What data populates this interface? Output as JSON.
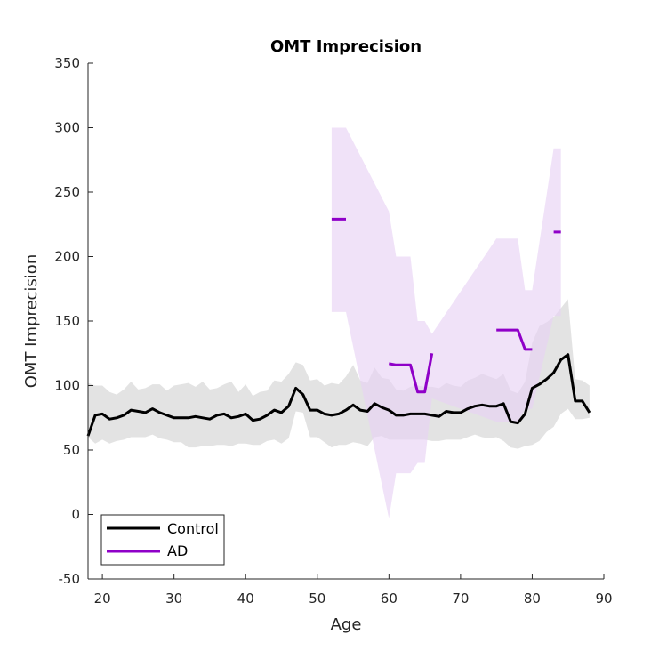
{
  "chart_data": {
    "type": "line",
    "title": "OMT Imprecision",
    "xlabel": "Age",
    "ylabel": "OMT Imprecision",
    "xlim": [
      18,
      90
    ],
    "ylim": [
      -50,
      350
    ],
    "xticks": [
      20,
      30,
      40,
      50,
      60,
      70,
      80,
      90
    ],
    "yticks": [
      -50,
      0,
      50,
      100,
      150,
      200,
      250,
      300,
      350
    ],
    "grid": false,
    "legend_position": "bottom-left",
    "colors": {
      "control": "#000000",
      "ad": "#8f00c8",
      "control_band": "#d9d9d9",
      "ad_band": "#e8d2f5"
    },
    "series": [
      {
        "name": "Control",
        "segments": [
          [
            [
              18,
              61
            ],
            [
              19,
              77
            ],
            [
              20,
              78
            ],
            [
              21,
              74
            ],
            [
              22,
              75
            ],
            [
              23,
              77
            ],
            [
              24,
              81
            ],
            [
              25,
              80
            ],
            [
              26,
              79
            ],
            [
              27,
              82
            ],
            [
              28,
              79
            ],
            [
              29,
              77
            ],
            [
              30,
              75
            ],
            [
              31,
              75
            ],
            [
              32,
              75
            ],
            [
              33,
              76
            ],
            [
              34,
              75
            ],
            [
              35,
              74
            ],
            [
              36,
              77
            ],
            [
              37,
              78
            ],
            [
              38,
              75
            ],
            [
              39,
              76
            ],
            [
              40,
              78
            ],
            [
              41,
              73
            ],
            [
              42,
              74
            ],
            [
              43,
              77
            ],
            [
              44,
              81
            ],
            [
              45,
              79
            ],
            [
              46,
              84
            ],
            [
              47,
              98
            ],
            [
              48,
              93
            ],
            [
              49,
              81
            ],
            [
              50,
              81
            ],
            [
              51,
              78
            ],
            [
              52,
              77
            ],
            [
              53,
              78
            ],
            [
              54,
              81
            ],
            [
              55,
              85
            ],
            [
              56,
              81
            ],
            [
              57,
              80
            ],
            [
              58,
              86
            ],
            [
              59,
              83
            ],
            [
              60,
              81
            ],
            [
              61,
              77
            ],
            [
              62,
              77
            ],
            [
              63,
              78
            ],
            [
              64,
              78
            ],
            [
              65,
              78
            ],
            [
              66,
              77
            ],
            [
              67,
              76
            ],
            [
              68,
              80
            ],
            [
              69,
              79
            ],
            [
              70,
              79
            ],
            [
              71,
              82
            ],
            [
              72,
              84
            ],
            [
              73,
              85
            ],
            [
              74,
              84
            ],
            [
              75,
              84
            ],
            [
              76,
              86
            ],
            [
              77,
              72
            ],
            [
              78,
              71
            ],
            [
              79,
              78
            ],
            [
              80,
              98
            ],
            [
              81,
              101
            ],
            [
              82,
              105
            ],
            [
              83,
              110
            ],
            [
              84,
              120
            ],
            [
              85,
              124
            ],
            [
              86,
              88
            ],
            [
              87,
              88
            ],
            [
              88,
              79
            ]
          ]
        ],
        "band_upper": [
          [
            18,
            102
          ],
          [
            19,
            100
          ],
          [
            20,
            100
          ],
          [
            21,
            95
          ],
          [
            22,
            93
          ],
          [
            23,
            97
          ],
          [
            24,
            103
          ],
          [
            25,
            97
          ],
          [
            26,
            98
          ],
          [
            27,
            101
          ],
          [
            28,
            101
          ],
          [
            29,
            96
          ],
          [
            30,
            100
          ],
          [
            31,
            101
          ],
          [
            32,
            102
          ],
          [
            33,
            99
          ],
          [
            34,
            103
          ],
          [
            35,
            97
          ],
          [
            36,
            98
          ],
          [
            37,
            101
          ],
          [
            38,
            103
          ],
          [
            39,
            95
          ],
          [
            40,
            101
          ],
          [
            41,
            92
          ],
          [
            42,
            95
          ],
          [
            43,
            96
          ],
          [
            44,
            104
          ],
          [
            45,
            103
          ],
          [
            46,
            109
          ],
          [
            47,
            118
          ],
          [
            48,
            116
          ],
          [
            49,
            104
          ],
          [
            50,
            105
          ],
          [
            51,
            100
          ],
          [
            52,
            102
          ],
          [
            53,
            101
          ],
          [
            54,
            107
          ],
          [
            55,
            116
          ],
          [
            56,
            104
          ],
          [
            57,
            102
          ],
          [
            58,
            114
          ],
          [
            59,
            106
          ],
          [
            60,
            105
          ],
          [
            61,
            97
          ],
          [
            62,
            96
          ],
          [
            63,
            99
          ],
          [
            64,
            100
          ],
          [
            65,
            99
          ],
          [
            66,
            99
          ],
          [
            67,
            98
          ],
          [
            68,
            102
          ],
          [
            69,
            100
          ],
          [
            70,
            99
          ],
          [
            71,
            104
          ],
          [
            72,
            106
          ],
          [
            73,
            109
          ],
          [
            74,
            107
          ],
          [
            75,
            105
          ],
          [
            76,
            109
          ],
          [
            77,
            96
          ],
          [
            78,
            94
          ],
          [
            79,
            103
          ],
          [
            80,
            133
          ],
          [
            81,
            146
          ],
          [
            82,
            149
          ],
          [
            83,
            153
          ],
          [
            84,
            160
          ],
          [
            85,
            167
          ],
          [
            86,
            105
          ],
          [
            87,
            104
          ],
          [
            88,
            100
          ]
        ],
        "band_lower": [
          [
            18,
            60
          ],
          [
            19,
            55
          ],
          [
            20,
            58
          ],
          [
            21,
            55
          ],
          [
            22,
            57
          ],
          [
            23,
            58
          ],
          [
            24,
            60
          ],
          [
            25,
            60
          ],
          [
            26,
            60
          ],
          [
            27,
            62
          ],
          [
            28,
            59
          ],
          [
            29,
            58
          ],
          [
            30,
            56
          ],
          [
            31,
            56
          ],
          [
            32,
            52
          ],
          [
            33,
            52
          ],
          [
            34,
            53
          ],
          [
            35,
            53
          ],
          [
            36,
            54
          ],
          [
            37,
            54
          ],
          [
            38,
            53
          ],
          [
            39,
            55
          ],
          [
            40,
            55
          ],
          [
            41,
            54
          ],
          [
            42,
            54
          ],
          [
            43,
            57
          ],
          [
            44,
            58
          ],
          [
            45,
            55
          ],
          [
            46,
            59
          ],
          [
            47,
            80
          ],
          [
            48,
            79
          ],
          [
            49,
            60
          ],
          [
            50,
            60
          ],
          [
            51,
            56
          ],
          [
            52,
            52
          ],
          [
            53,
            54
          ],
          [
            54,
            54
          ],
          [
            55,
            56
          ],
          [
            56,
            55
          ],
          [
            57,
            53
          ],
          [
            58,
            60
          ],
          [
            59,
            61
          ],
          [
            60,
            58
          ],
          [
            61,
            58
          ],
          [
            62,
            58
          ],
          [
            63,
            58
          ],
          [
            64,
            58
          ],
          [
            65,
            58
          ],
          [
            66,
            57
          ],
          [
            67,
            57
          ],
          [
            68,
            58
          ],
          [
            69,
            58
          ],
          [
            70,
            58
          ],
          [
            71,
            60
          ],
          [
            72,
            62
          ],
          [
            73,
            60
          ],
          [
            74,
            59
          ],
          [
            75,
            60
          ],
          [
            76,
            57
          ],
          [
            77,
            52
          ],
          [
            78,
            51
          ],
          [
            79,
            53
          ],
          [
            80,
            54
          ],
          [
            81,
            57
          ],
          [
            82,
            64
          ],
          [
            83,
            68
          ],
          [
            84,
            78
          ],
          [
            85,
            82
          ],
          [
            86,
            74
          ],
          [
            87,
            74
          ],
          [
            88,
            75
          ]
        ]
      },
      {
        "name": "AD",
        "segments": [
          [
            [
              52,
              229
            ],
            [
              54,
              229
            ]
          ],
          [
            [
              60,
              117
            ],
            [
              61,
              116
            ],
            [
              62,
              116
            ],
            [
              63,
              116
            ],
            [
              64,
              95
            ],
            [
              65,
              95
            ],
            [
              66,
              125
            ]
          ],
          [
            [
              75,
              143
            ],
            [
              76,
              143
            ],
            [
              77,
              143
            ],
            [
              78,
              143
            ],
            [
              79,
              128
            ],
            [
              80,
              128
            ]
          ],
          [
            [
              83,
              219
            ],
            [
              84,
              219
            ]
          ]
        ],
        "band_upper": [
          [
            52,
            300
          ],
          [
            54,
            300
          ],
          [
            60,
            235
          ],
          [
            61,
            200
          ],
          [
            62,
            200
          ],
          [
            63,
            200
          ],
          [
            64,
            150
          ],
          [
            65,
            150
          ],
          [
            66,
            140
          ],
          [
            75,
            214
          ],
          [
            78,
            214
          ],
          [
            79,
            174
          ],
          [
            80,
            174
          ],
          [
            83,
            284
          ],
          [
            84,
            284
          ]
        ],
        "band_lower": [
          [
            52,
            157
          ],
          [
            54,
            157
          ],
          [
            60,
            -3
          ],
          [
            61,
            32
          ],
          [
            62,
            32
          ],
          [
            63,
            32
          ],
          [
            64,
            40
          ],
          [
            65,
            40
          ],
          [
            66,
            90
          ],
          [
            75,
            72
          ],
          [
            78,
            72
          ],
          [
            79,
            82
          ],
          [
            80,
            82
          ],
          [
            83,
            154
          ],
          [
            84,
            154
          ]
        ]
      }
    ]
  }
}
